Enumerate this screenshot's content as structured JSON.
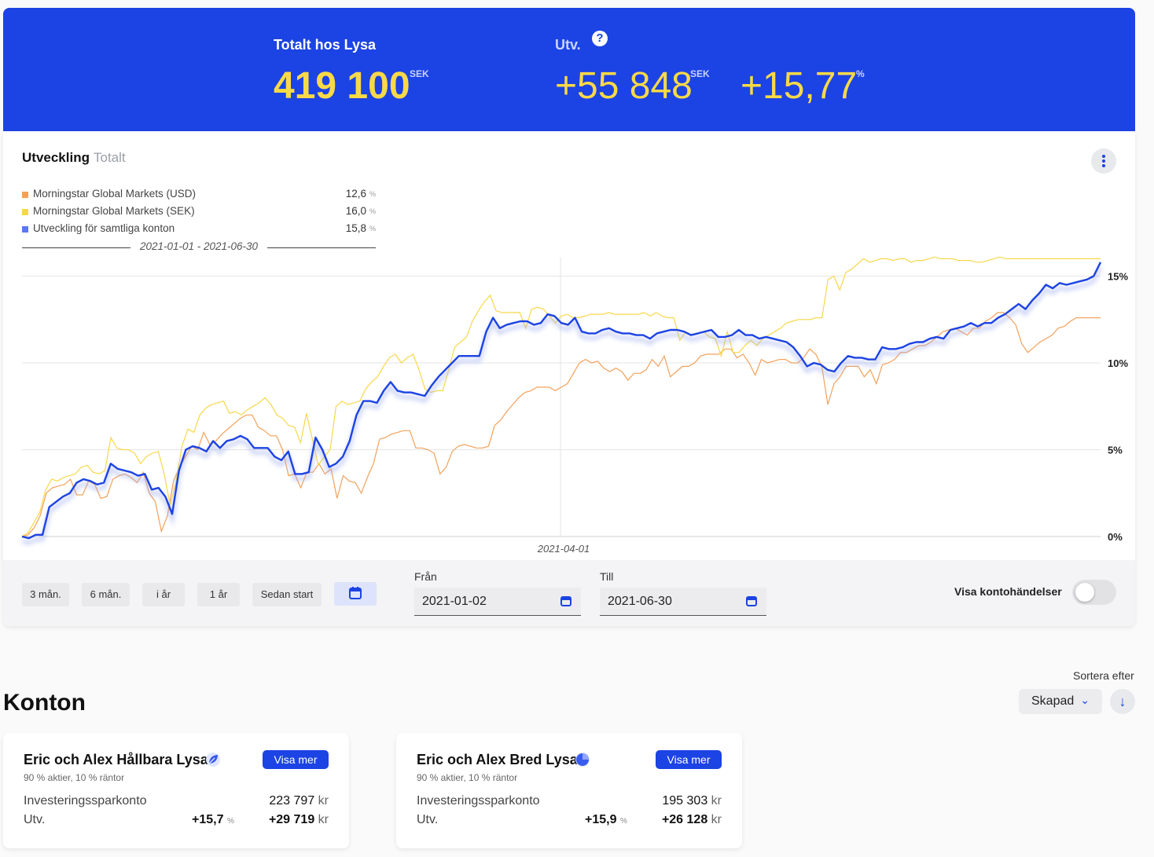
{
  "header": {
    "total_label": "Totalt hos Lysa",
    "total_value": "419 100",
    "total_unit": "SEK",
    "dev_label": "Utv.",
    "dev_value": "+55 848",
    "dev_unit": "SEK",
    "dev_pct": "+15,77",
    "dev_pct_unit": "%"
  },
  "chart_card": {
    "title": "Utveckling",
    "subtitle": "Totalt",
    "legend": [
      {
        "name": "Morningstar Global Markets (USD)",
        "value": "12,6",
        "unit": "%",
        "color": "#f3a15a"
      },
      {
        "name": "Morningstar Global Markets (SEK)",
        "value": "16,0",
        "unit": "%",
        "color": "#f7d84a"
      },
      {
        "name": "Utveckling för samtliga konton",
        "value": "15,8",
        "unit": "%",
        "color": "#1c43e3"
      }
    ],
    "date_range": "2021-01-01 - 2021-06-30"
  },
  "chart_data": {
    "type": "line",
    "x_marker": "2021-04-01",
    "y_ticks": [
      "0%",
      "5%",
      "10%",
      "15%"
    ],
    "ylim": [
      0,
      16
    ],
    "grid": true,
    "series": [
      {
        "name": "Morningstar Global Markets (USD)",
        "color": "#f3a15a",
        "values": [
          0,
          0.1,
          0.5,
          1.2,
          2.5,
          2.8,
          2.9,
          3.0,
          3.3,
          2.4,
          2.4,
          3.2,
          3.0,
          2.2,
          2.3,
          3.3,
          3.5,
          3.6,
          3.4,
          3.1,
          3.7,
          2.5,
          2.0,
          0.3,
          1.2,
          3.2,
          4.0,
          4.6,
          5.2,
          5.0,
          6.0,
          5.3,
          5.5,
          5.9,
          6.2,
          6.5,
          6.8,
          7.0,
          7.0,
          6.3,
          6.1,
          5.8,
          5.8,
          5.0,
          3.5,
          3.6,
          2.8,
          3.7,
          3.7,
          4.2,
          3.6,
          3.9,
          2.2,
          3.5,
          3.2,
          3.1,
          2.5,
          3.4,
          4.2,
          5.6,
          5.7,
          5.9,
          6.0,
          6.1,
          6.1,
          5.1,
          5.1,
          5.0,
          4.8,
          3.6,
          4.0,
          4.9,
          5.2,
          5.3,
          5.2,
          5.1,
          5.1,
          5.2,
          6.4,
          6.7,
          7.2,
          7.6,
          8.0,
          8.3,
          8.4,
          8.6,
          8.6,
          8.6,
          8.4,
          8.6,
          8.8,
          9.4,
          10.0,
          10.2,
          10.0,
          10.1,
          9.7,
          9.5,
          9.7,
          9.5,
          9.0,
          9.4,
          9.4,
          9.6,
          10.2,
          9.8,
          10.4,
          9.2,
          9.5,
          9.8,
          9.8,
          10.0,
          10.4,
          10.5,
          10.5,
          10.5,
          10.8,
          10.8,
          10.3,
          10.5,
          10.0,
          9.3,
          10.2,
          10.0,
          10.1,
          10.2,
          10.2,
          10.0,
          10.0,
          10.3,
          10.8,
          10.5,
          9.8,
          7.6,
          8.8,
          9.2,
          9.8,
          9.8,
          9.8,
          9.2,
          9.6,
          8.8,
          9.9,
          10.0,
          10.2,
          10.6,
          10.6,
          10.8,
          11.0,
          11.0,
          11.2,
          11.5,
          11.8,
          11.9,
          12.0,
          11.8,
          11.6,
          12.0,
          12.0,
          12.4,
          12.6,
          12.9,
          12.9,
          12.6,
          12.2,
          11.1,
          10.6,
          10.9,
          11.2,
          11.4,
          11.6,
          12.0,
          12.1,
          12.4,
          12.6,
          12.6,
          12.6,
          12.6,
          12.6
        ]
      },
      {
        "name": "Morningstar Global Markets (SEK)",
        "color": "#f7d84a",
        "values": [
          0,
          0.2,
          0.8,
          1.4,
          2.7,
          3.3,
          3.2,
          3.4,
          3.5,
          3.6,
          4.0,
          4.1,
          3.7,
          3.6,
          3.8,
          5.7,
          5.1,
          5.0,
          5.0,
          4.8,
          4.2,
          4.6,
          4.8,
          4.9,
          3.6,
          1.8,
          3.2,
          5.2,
          6.2,
          6.0,
          7.0,
          7.4,
          7.6,
          7.7,
          7.8,
          7.1,
          7.2,
          7.0,
          7.3,
          7.5,
          7.7,
          8.0,
          7.6,
          7.0,
          6.8,
          6.4,
          6.3,
          5.4,
          7.1,
          5.6,
          4.1,
          4.6,
          5.0,
          7.5,
          7.8,
          7.6,
          7.7,
          7.8,
          8.5,
          8.9,
          9.2,
          9.8,
          10.3,
          10.5,
          10.0,
          10.3,
          10.5,
          9.6,
          8.5,
          8.3,
          8.4,
          8.4,
          9.6,
          10.9,
          11.2,
          11.5,
          12.4,
          13.0,
          13.5,
          13.9,
          13.0,
          12.9,
          12.9,
          12.9,
          12.9,
          12.0,
          13.1,
          13.2,
          13.1,
          12.7,
          12.3,
          12.7,
          12.8,
          12.6,
          12.6,
          12.7,
          12.8,
          12.8,
          12.8,
          12.9,
          12.8,
          12.8,
          12.8,
          12.8,
          12.8,
          12.9,
          12.7,
          12.9,
          12.7,
          12.6,
          12.6,
          11.3,
          11.8,
          11.6,
          11.7,
          11.8,
          11.5,
          11.4,
          10.4,
          11.8,
          10.6,
          10.6,
          11.0,
          11.3,
          11.0,
          11.4,
          11.6,
          11.8,
          12.0,
          12.3,
          12.4,
          12.5,
          12.5,
          12.5,
          12.6,
          12.6,
          14.8,
          15.0,
          14.2,
          15.2,
          15.4,
          15.7,
          16.0,
          15.8,
          15.9,
          16.0,
          16.0,
          15.9,
          16.0,
          16.0,
          15.8,
          15.9,
          15.9,
          16.0,
          16.1,
          16.0,
          16.0,
          16.0,
          15.9,
          15.9,
          15.9,
          15.8,
          15.8,
          15.9,
          16.0,
          16.1,
          16.0,
          16.0,
          16.0,
          16.0,
          16.0,
          16.0,
          16.0,
          16.0,
          16.0,
          16.0,
          16.0,
          16.0,
          16.0,
          16.0,
          16.0,
          16.0,
          16.0
        ]
      },
      {
        "name": "Utveckling för samtliga konton",
        "color": "#1c43e3",
        "values": [
          0,
          -0.1,
          0.1,
          0.1,
          1.7,
          2.0,
          2.3,
          2.5,
          3.1,
          3.3,
          3.2,
          3.0,
          3.1,
          4.2,
          3.9,
          3.8,
          3.7,
          3.5,
          3.6,
          2.7,
          2.8,
          2.3,
          1.3,
          3.8,
          5.0,
          5.2,
          5.1,
          4.9,
          5.5,
          5.1,
          5.5,
          5.6,
          5.8,
          5.6,
          5.1,
          5.1,
          5.1,
          4.6,
          4.4,
          4.9,
          3.6,
          3.6,
          3.7,
          5.7,
          5.0,
          4.0,
          4.2,
          4.6,
          5.5,
          7.0,
          7.8,
          7.8,
          7.7,
          8.4,
          8.9,
          8.4,
          8.3,
          8.3,
          8.2,
          8.1,
          8.7,
          9.2,
          9.6,
          10.0,
          10.4,
          10.4,
          10.4,
          10.4,
          11.8,
          12.6,
          12.0,
          12.2,
          12.3,
          12.4,
          12.4,
          12.2,
          12.3,
          12.8,
          12.7,
          12.3,
          12.2,
          12.6,
          11.8,
          11.7,
          11.7,
          11.9,
          12.0,
          11.8,
          11.7,
          11.7,
          11.6,
          11.6,
          11.4,
          11.7,
          11.8,
          11.9,
          11.9,
          11.8,
          11.6,
          11.7,
          11.8,
          11.9,
          11.5,
          11.5,
          11.6,
          11.9,
          11.6,
          11.6,
          11.4,
          11.5,
          11.4,
          11.3,
          11.2,
          10.9,
          10.4,
          9.8,
          10.0,
          9.9,
          9.6,
          9.5,
          10.0,
          10.4,
          10.3,
          10.3,
          10.2,
          10.2,
          10.9,
          10.8,
          10.8,
          10.9,
          11.1,
          11.2,
          11.2,
          11.4,
          11.5,
          11.4,
          11.9,
          12.0,
          12.1,
          12.3,
          12.1,
          12.3,
          12.3,
          12.6,
          12.8,
          13.1,
          13.4,
          13.1,
          13.6,
          14.0,
          14.5,
          14.3,
          14.6,
          14.5,
          14.6,
          14.7,
          14.8,
          15.0,
          15.8
        ]
      }
    ]
  },
  "controls": {
    "periods": [
      "3 mån.",
      "6 mån.",
      "i år",
      "1 år",
      "Sedan start"
    ],
    "from_label": "Från",
    "from_value": "2021-01-02",
    "to_label": "Till",
    "to_value": "2021-06-30",
    "toggle_label": "Visa kontohändelser"
  },
  "accounts_section": {
    "title": "Konton",
    "sort_label": "Sortera efter",
    "sort_value": "Skapad"
  },
  "accounts": [
    {
      "name": "Eric och Alex Hållbara Lysa",
      "allocation": "90 % aktier, 10 % räntor",
      "button": "Visa mer",
      "type": "Investeringssparkonto",
      "total": "223 797",
      "dev_label": "Utv.",
      "dev_pct": "+15,7",
      "dev_value": "+29 719",
      "currency": "kr",
      "pct_unit": "%",
      "icon": "leaf-icon"
    },
    {
      "name": "Eric och Alex Bred Lysa",
      "allocation": "90 % aktier, 10 % räntor",
      "button": "Visa mer",
      "type": "Investeringssparkonto",
      "total": "195 303",
      "dev_label": "Utv.",
      "dev_pct": "+15,9",
      "dev_value": "+26 128",
      "currency": "kr",
      "pct_unit": "%",
      "icon": "globe-icon"
    }
  ]
}
